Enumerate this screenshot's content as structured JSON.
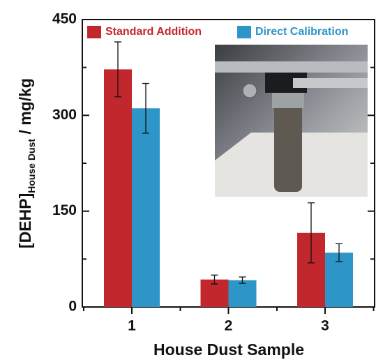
{
  "chart_data": {
    "type": "bar",
    "xlabel": "House Dust Sample",
    "ylabel_main": "[DEHP]",
    "ylabel_sub": "House Dust",
    "ylabel_unit": " / mg/kg",
    "categories": [
      "1",
      "2",
      "3"
    ],
    "series": [
      {
        "name": "Standard Addition",
        "color": "#c3272e",
        "values": [
          372,
          43,
          116
        ],
        "errors": [
          43,
          7,
          47
        ]
      },
      {
        "name": "Direct Calibration",
        "color": "#2e95c8",
        "values": [
          311,
          42,
          85
        ],
        "errors": [
          39,
          5,
          14
        ]
      }
    ],
    "ylim": [
      0,
      450
    ],
    "yticks": [
      0,
      150,
      300,
      450
    ],
    "yminorticks": [
      75,
      225,
      375
    ]
  }
}
